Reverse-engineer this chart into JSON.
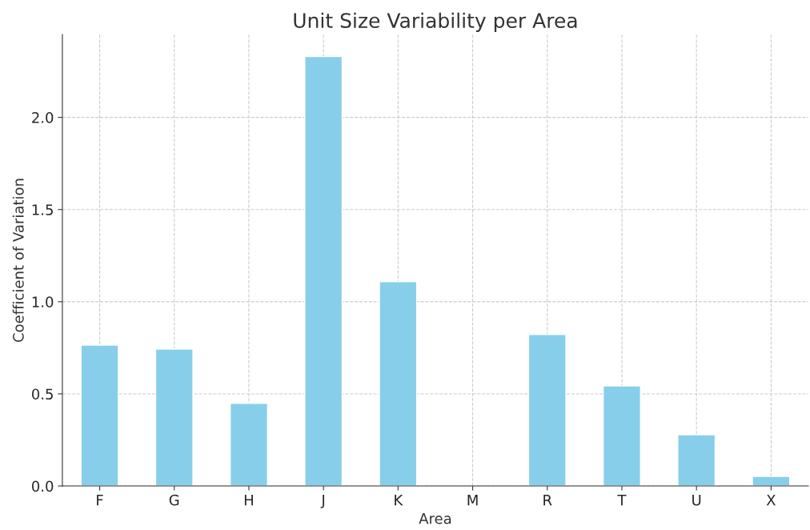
{
  "chart_data": {
    "type": "bar",
    "title": "Unit Size Variability per Area",
    "xlabel": "Area",
    "ylabel": "Coefficient of Variation",
    "categories": [
      "F",
      "G",
      "H",
      "J",
      "K",
      "M",
      "R",
      "T",
      "U",
      "X"
    ],
    "values": [
      0.765,
      0.743,
      0.448,
      2.33,
      1.109,
      null,
      0.822,
      0.543,
      0.278,
      0.052
    ],
    "color": "#87ceeb",
    "ylim": [
      0,
      2.45
    ],
    "yticks": [
      {
        "value": 0,
        "label": "0.0"
      },
      0.5,
      {
        "value": 1,
        "label": "1.0"
      },
      1.5,
      {
        "value": 2,
        "label": "2.0"
      }
    ],
    "grid": true,
    "legend": false
  }
}
